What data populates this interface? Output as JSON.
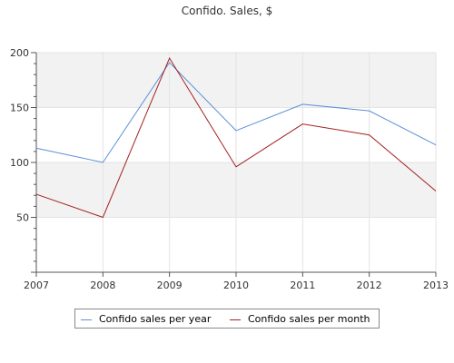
{
  "chart_data": {
    "type": "line",
    "title": "Confido. Sales, $",
    "xlabel": "",
    "ylabel": "",
    "categories": [
      "2007",
      "2008",
      "2009",
      "2010",
      "2011",
      "2012",
      "2013"
    ],
    "ylim": [
      0,
      200
    ],
    "yticks": [
      "50",
      "100",
      "150",
      "200"
    ],
    "grid": true,
    "legend_position": "bottom",
    "series": [
      {
        "name": "Confido sales per year",
        "color": "#5b8fd8",
        "values": [
          113,
          100,
          191,
          129,
          153,
          147,
          116
        ]
      },
      {
        "name": "Confido sales per month",
        "color": "#a32020",
        "values": [
          71,
          50,
          195,
          96,
          135,
          125,
          74
        ]
      }
    ]
  }
}
